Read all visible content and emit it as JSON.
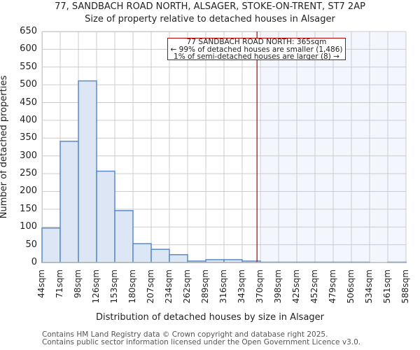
{
  "title_line1": "77, SANDBACH ROAD NORTH, ALSAGER, STOKE-ON-TRENT, ST7 2AP",
  "title_line2": "Size of property relative to detached houses in Alsager",
  "annotation": {
    "line1": "77 SANDBACH ROAD NORTH: 365sqm",
    "line2": "← 99% of detached houses are smaller (1,486)",
    "line3": "1% of semi-detached houses are larger (8) →",
    "marker_value": 365,
    "color": "#b00000"
  },
  "footer": {
    "line1": "Contains HM Land Registry data © Crown copyright and database right 2025.",
    "line2": "Contains public sector information licensed under the Open Government Licence v3.0."
  },
  "colors": {
    "bar_fill": "#dce6f4",
    "bar_edge": "#5b8ac9",
    "highlight_region": "#f3f6fd",
    "grid": "#cccccc",
    "marker": "#b00000"
  },
  "chart_data": {
    "type": "bar",
    "title": "77, SANDBACH ROAD NORTH, ALSAGER, STOKE-ON-TRENT, ST7 2AP — Size of property relative to detached houses in Alsager",
    "xlabel": "Distribution of detached houses by size in Alsager",
    "ylabel": "Number of detached properties",
    "ylim": [
      0,
      650
    ],
    "yticks": [
      0,
      50,
      100,
      150,
      200,
      250,
      300,
      350,
      400,
      450,
      500,
      550,
      600,
      650
    ],
    "categories": [
      "44sqm",
      "71sqm",
      "98sqm",
      "126sqm",
      "153sqm",
      "180sqm",
      "207sqm",
      "234sqm",
      "262sqm",
      "289sqm",
      "316sqm",
      "343sqm",
      "370sqm",
      "398sqm",
      "425sqm",
      "452sqm",
      "479sqm",
      "506sqm",
      "534sqm",
      "561sqm",
      "588sqm"
    ],
    "values": [
      97,
      341,
      511,
      257,
      146,
      53,
      37,
      22,
      4,
      8,
      8,
      4,
      1,
      1,
      1,
      1,
      1,
      1,
      0,
      1
    ],
    "grid": true,
    "marker_x": "365sqm"
  }
}
